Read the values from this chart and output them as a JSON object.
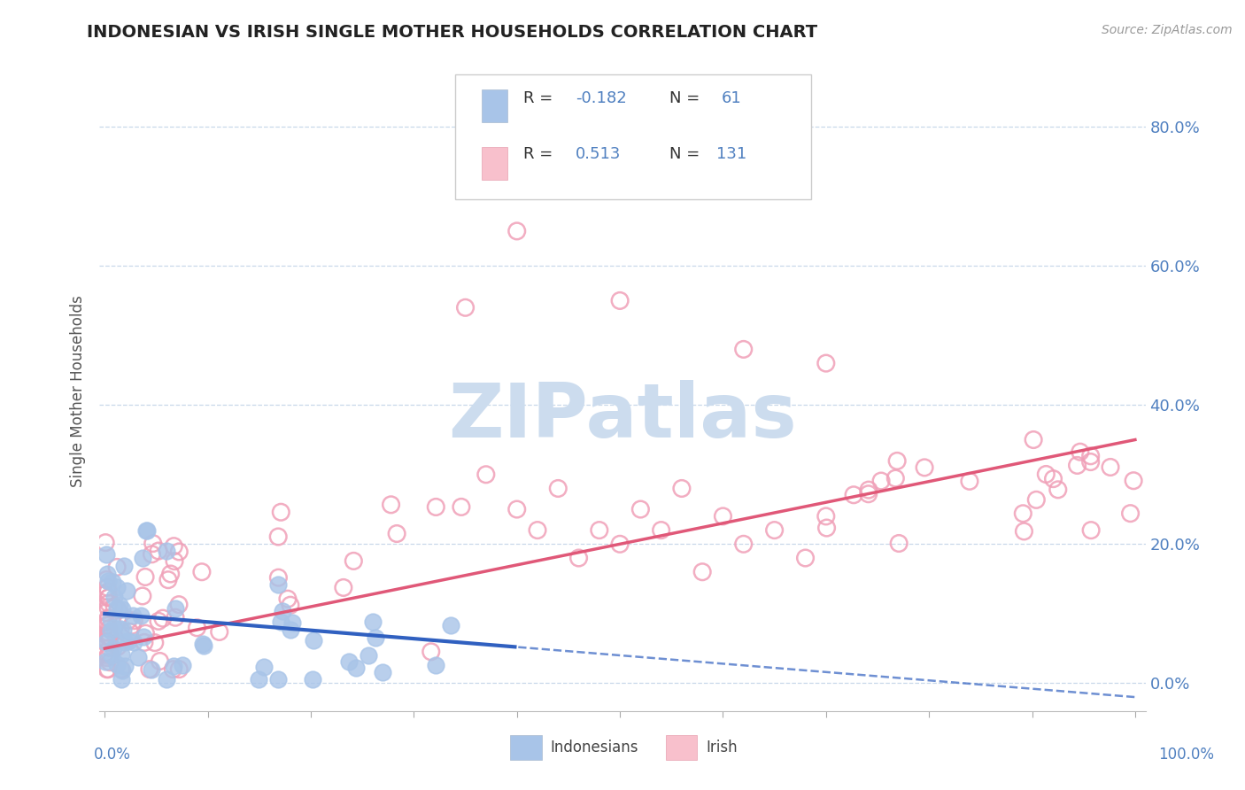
{
  "title": "INDONESIAN VS IRISH SINGLE MOTHER HOUSEHOLDS CORRELATION CHART",
  "source": "Source: ZipAtlas.com",
  "ylabel": "Single Mother Households",
  "legend_indonesian": "Indonesians",
  "legend_irish": "Irish",
  "indonesian_R": -0.182,
  "indonesian_N": 61,
  "irish_R": 0.513,
  "irish_N": 131,
  "indonesian_color_fill": "#a8c4e8",
  "indonesian_color_edge": "#a8c4e8",
  "irish_color_fill": "none",
  "irish_color_edge": "#f0a0b8",
  "indonesian_line_color": "#3060c0",
  "irish_line_color": "#e05878",
  "tick_color": "#5080c0",
  "background_color": "#ffffff",
  "grid_color": "#c8d8ea",
  "yticks": [
    0.0,
    0.2,
    0.4,
    0.6,
    0.8
  ],
  "ylim": [
    -0.04,
    0.88
  ],
  "xlim": [
    -0.005,
    1.01
  ],
  "watermark": "ZIPatlas",
  "watermark_color": "#ccdcee"
}
